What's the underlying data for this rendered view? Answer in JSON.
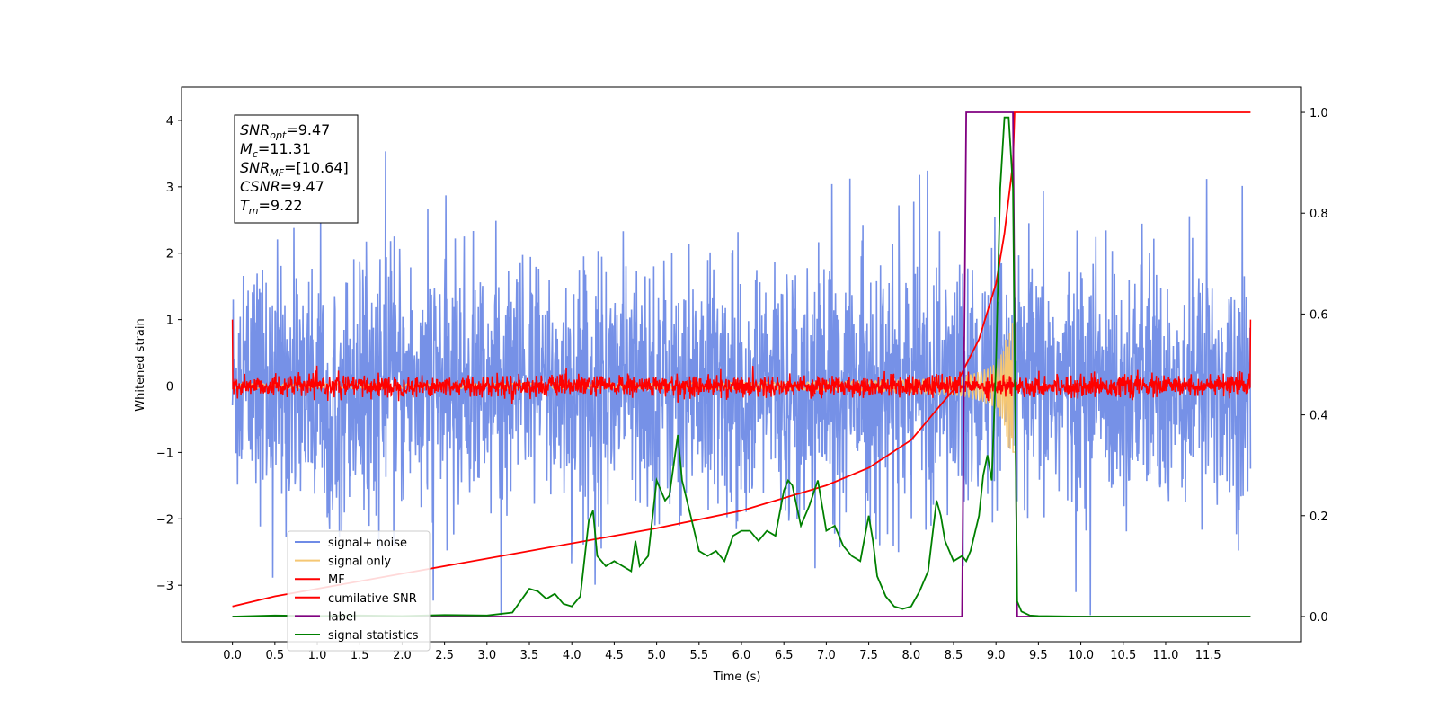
{
  "chart_data": {
    "type": "line",
    "xlabel": "Time (s)",
    "ylabel": "Whitened strain",
    "xlim": [
      -0.6,
      12.6
    ],
    "ylim": [
      -3.85,
      4.5
    ],
    "y2lim": [
      -0.05,
      1.05
    ],
    "x_ticks": [
      "0.0",
      "0.5",
      "1.0",
      "1.5",
      "2.0",
      "2.5",
      "3.0",
      "3.5",
      "4.0",
      "4.5",
      "5.0",
      "5.5",
      "6.0",
      "6.5",
      "7.0",
      "7.5",
      "8.0",
      "8.5",
      "9.0",
      "9.5",
      "10.0",
      "10.5",
      "11.0",
      "11.5"
    ],
    "y_ticks": [
      "−3",
      "−2",
      "−1",
      "0",
      "1",
      "2",
      "3",
      "4"
    ],
    "y2_ticks": [
      "0.0",
      "0.2",
      "0.4",
      "0.6",
      "0.8",
      "1.0"
    ],
    "grid": false,
    "legend_position": "lower-left",
    "info_box": {
      "lines": [
        {
          "sym": "SNR",
          "sub": "opt",
          "val": "=9.47"
        },
        {
          "sym": "M",
          "sub": "c",
          "val": "=11.31"
        },
        {
          "sym": "SNR",
          "sub": "MF",
          "val": "=[10.64]"
        },
        {
          "sym": "CSNR",
          "sub": "",
          "val": "=9.47"
        },
        {
          "sym": "T",
          "sub": "m",
          "val": "=9.22"
        }
      ]
    },
    "series": [
      {
        "name": "signal+ noise",
        "color": "#6f8be6",
        "axis": "left",
        "kind": "noise",
        "x_range": [
          0,
          12.0
        ],
        "approx_amplitude": 1.1
      },
      {
        "name": "signal only",
        "color": "#f5c774",
        "axis": "left",
        "kind": "chirp",
        "x_range": [
          0,
          9.22
        ]
      },
      {
        "name": "MF",
        "color": "#ff0000",
        "axis": "left",
        "kind": "noise",
        "x_range": [
          0,
          12.0
        ],
        "approx_amplitude": 0.08
      },
      {
        "name": "cumilative SNR",
        "color": "#ff0000",
        "axis": "right",
        "x": [
          0,
          0.5,
          1.0,
          2.0,
          3.0,
          4.0,
          5.0,
          6.0,
          7.0,
          7.5,
          8.0,
          8.5,
          8.8,
          9.0,
          9.1,
          9.2,
          9.22,
          12.0
        ],
        "values": [
          0.02,
          0.04,
          0.055,
          0.085,
          0.115,
          0.145,
          0.175,
          0.21,
          0.26,
          0.295,
          0.35,
          0.45,
          0.55,
          0.66,
          0.76,
          0.9,
          1.0,
          1.0
        ]
      },
      {
        "name": "label",
        "color": "#800080",
        "axis": "right",
        "x": [
          0,
          8.6,
          8.65,
          9.2,
          9.25,
          12.0
        ],
        "values": [
          0,
          0,
          1,
          1,
          0,
          0
        ]
      },
      {
        "name": "signal statistics",
        "color": "#008000",
        "axis": "right",
        "x": [
          0,
          0.5,
          1.0,
          1.5,
          2.0,
          2.5,
          3.0,
          3.3,
          3.5,
          3.6,
          3.7,
          3.8,
          3.9,
          4.0,
          4.1,
          4.2,
          4.25,
          4.3,
          4.4,
          4.5,
          4.6,
          4.7,
          4.75,
          4.8,
          4.9,
          5.0,
          5.05,
          5.1,
          5.15,
          5.2,
          5.25,
          5.3,
          5.4,
          5.5,
          5.6,
          5.7,
          5.8,
          5.9,
          6.0,
          6.1,
          6.2,
          6.3,
          6.4,
          6.5,
          6.55,
          6.6,
          6.7,
          6.8,
          6.9,
          7.0,
          7.1,
          7.2,
          7.3,
          7.4,
          7.5,
          7.55,
          7.6,
          7.7,
          7.8,
          7.9,
          8.0,
          8.1,
          8.2,
          8.3,
          8.35,
          8.4,
          8.5,
          8.6,
          8.65,
          8.7,
          8.8,
          8.85,
          8.9,
          8.95,
          9.0,
          9.05,
          9.1,
          9.15,
          9.2,
          9.25,
          9.3,
          9.4,
          9.5,
          10.0,
          11.0,
          12.0
        ],
        "values": [
          0.0,
          0.002,
          0.001,
          0.002,
          0.001,
          0.003,
          0.002,
          0.008,
          0.055,
          0.05,
          0.035,
          0.045,
          0.025,
          0.02,
          0.04,
          0.19,
          0.21,
          0.12,
          0.1,
          0.11,
          0.1,
          0.09,
          0.15,
          0.1,
          0.12,
          0.27,
          0.25,
          0.23,
          0.24,
          0.3,
          0.36,
          0.27,
          0.2,
          0.13,
          0.12,
          0.13,
          0.11,
          0.16,
          0.17,
          0.17,
          0.15,
          0.17,
          0.16,
          0.25,
          0.27,
          0.26,
          0.18,
          0.22,
          0.27,
          0.17,
          0.18,
          0.14,
          0.12,
          0.11,
          0.2,
          0.15,
          0.08,
          0.04,
          0.02,
          0.015,
          0.02,
          0.05,
          0.09,
          0.23,
          0.2,
          0.15,
          0.11,
          0.12,
          0.11,
          0.13,
          0.2,
          0.28,
          0.32,
          0.27,
          0.5,
          0.85,
          0.99,
          0.99,
          0.85,
          0.03,
          0.01,
          0.002,
          0.001,
          0.0,
          0.0,
          0.0
        ]
      }
    ]
  }
}
